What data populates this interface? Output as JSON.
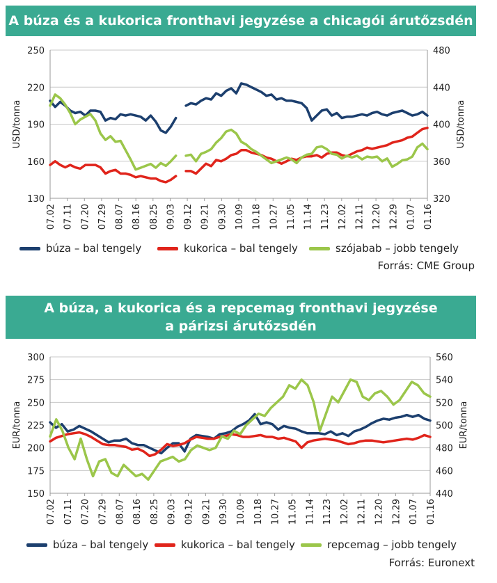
{
  "chart_data": [
    {
      "type": "line",
      "title": "A búza és a kukorica fronthavi jegyzése a chicagói árutőzsdén",
      "ylabel": "USD/tonna",
      "ylabel_right": "USD/tonna",
      "ylim": [
        130,
        250
      ],
      "yticks": [
        130,
        160,
        190,
        220,
        250
      ],
      "ylim_right": [
        320,
        480
      ],
      "yticks_right": [
        320,
        360,
        400,
        440,
        480
      ],
      "x_ticks": [
        "07.02",
        "07.11",
        "07.20",
        "07.29",
        "08.07",
        "08.16",
        "08.25",
        "09.03",
        "09.12",
        "09.21",
        "09.30",
        "10.09",
        "10.18",
        "10.27",
        "11.05",
        "11.14",
        "11.23",
        "12.02",
        "12.11",
        "12.20",
        "12.29",
        "01.07",
        "01.16"
      ],
      "grid": "horizontal",
      "legend_position": "bottom",
      "series": [
        {
          "name": "búza – bal tengely",
          "axis": "left",
          "color": "#1c3f6e",
          "values": [
            209,
            204,
            208,
            205,
            201,
            199,
            200,
            197,
            201,
            201,
            200,
            193,
            195,
            194,
            198,
            197,
            198,
            197,
            196,
            193,
            197,
            192,
            185,
            183,
            188,
            195,
            null,
            205,
            207,
            206,
            209,
            211,
            210,
            215,
            213,
            217,
            219,
            215,
            223,
            222,
            220,
            218,
            216,
            213,
            214,
            210,
            211,
            209,
            209,
            208,
            207,
            203,
            193,
            197,
            201,
            202,
            197,
            199,
            195,
            196,
            196,
            197,
            198,
            197,
            199,
            200,
            198,
            197,
            199,
            200,
            201,
            199,
            197,
            198,
            200,
            197
          ]
        },
        {
          "name": "kukorica – bal tengely",
          "axis": "left",
          "color": "#e0241b",
          "values": [
            157,
            160,
            157,
            155,
            157,
            155,
            154,
            157,
            157,
            157,
            155,
            150,
            152,
            153,
            150,
            150,
            149,
            147,
            148,
            147,
            146,
            146,
            144,
            143,
            145,
            148,
            null,
            152,
            152,
            150,
            154,
            158,
            156,
            161,
            160,
            162,
            165,
            166,
            169,
            169,
            167,
            166,
            165,
            163,
            162,
            160,
            158,
            160,
            162,
            161,
            163,
            164,
            164,
            165,
            163,
            166,
            167,
            167,
            165,
            164,
            166,
            168,
            169,
            171,
            170,
            171,
            172,
            173,
            175,
            176,
            177,
            179,
            180,
            183,
            186,
            187
          ]
        },
        {
          "name": "szójabab – jobb tengely",
          "axis": "right",
          "color": "#9bc64a",
          "values": [
            420,
            432,
            428,
            421,
            412,
            400,
            405,
            408,
            411,
            404,
            390,
            383,
            387,
            381,
            382,
            372,
            362,
            351,
            353,
            355,
            357,
            353,
            358,
            355,
            360,
            366,
            null,
            366,
            367,
            360,
            368,
            370,
            373,
            380,
            385,
            392,
            394,
            390,
            381,
            378,
            373,
            370,
            366,
            362,
            358,
            360,
            362,
            364,
            362,
            358,
            364,
            367,
            368,
            375,
            376,
            373,
            368,
            367,
            363,
            366,
            364,
            366,
            362,
            365,
            364,
            365,
            360,
            363,
            354,
            357,
            361,
            362,
            365,
            375,
            379,
            373
          ]
        }
      ]
    },
    {
      "type": "line",
      "title": "A búza, a kukorica és a repcemag fronthavi jegyzése a párizsi árutőzsdén",
      "ylabel": "EUR/tonna",
      "ylabel_right": "EUR/tonna",
      "ylim": [
        150,
        300
      ],
      "yticks": [
        150,
        175,
        200,
        225,
        250,
        275,
        300
      ],
      "ylim_right": [
        440,
        560
      ],
      "yticks_right": [
        440,
        460,
        480,
        500,
        520,
        540,
        560
      ],
      "x_ticks": [
        "07.02",
        "07.11",
        "07.20",
        "07.29",
        "08.07",
        "08.16",
        "08.25",
        "09.03",
        "09.12",
        "09.21",
        "09.30",
        "10.09",
        "10.18",
        "10.27",
        "11.05",
        "11.14",
        "11.23",
        "12.02",
        "12.11",
        "12.20",
        "12.29",
        "01.07",
        "01.16"
      ],
      "grid": "horizontal",
      "legend_position": "bottom",
      "series": [
        {
          "name": "búza – bal tengely",
          "axis": "left",
          "color": "#1c3f6e",
          "values": [
            228,
            222,
            226,
            218,
            220,
            224,
            221,
            218,
            214,
            210,
            206,
            208,
            208,
            210,
            205,
            203,
            203,
            200,
            197,
            194,
            200,
            205,
            205,
            196,
            210,
            214,
            213,
            212,
            210,
            215,
            216,
            218,
            223,
            226,
            230,
            237,
            226,
            228,
            226,
            220,
            224,
            222,
            221,
            218,
            216,
            216,
            216,
            215,
            218,
            214,
            216,
            213,
            218,
            220,
            223,
            227,
            230,
            232,
            231,
            233,
            234,
            236,
            234,
            236,
            232,
            230
          ]
        },
        {
          "name": "kukorica – bal tengely",
          "axis": "left",
          "color": "#e0241b",
          "values": [
            207,
            211,
            213,
            215,
            216,
            217,
            215,
            212,
            208,
            204,
            203,
            203,
            202,
            201,
            198,
            199,
            196,
            191,
            193,
            198,
            204,
            202,
            203,
            205,
            209,
            212,
            211,
            210,
            210,
            212,
            213,
            215,
            214,
            212,
            212,
            213,
            214,
            212,
            212,
            210,
            211,
            209,
            207,
            200,
            206,
            208,
            209,
            210,
            209,
            208,
            206,
            204,
            205,
            207,
            208,
            208,
            207,
            206,
            207,
            208,
            209,
            210,
            209,
            211,
            214,
            212
          ]
        },
        {
          "name": "repcemag – jobb tengely",
          "axis": "right",
          "color": "#9bc64a",
          "values": [
            490,
            505,
            495,
            480,
            470,
            488,
            470,
            455,
            468,
            470,
            458,
            455,
            465,
            460,
            455,
            457,
            452,
            460,
            468,
            470,
            472,
            468,
            470,
            478,
            482,
            480,
            478,
            480,
            490,
            488,
            495,
            492,
            500,
            505,
            510,
            508,
            515,
            520,
            525,
            535,
            532,
            540,
            535,
            520,
            495,
            510,
            525,
            520,
            530,
            540,
            538,
            525,
            522,
            528,
            530,
            525,
            518,
            522,
            530,
            538,
            535,
            528,
            525
          ]
        }
      ]
    }
  ],
  "legend1": {
    "items": [
      "búza – bal tengely",
      "kukorica – bal tengely",
      "szójabab – jobb tengely"
    ]
  },
  "legend2": {
    "items": [
      "búza – bal tengely",
      "kukorica – bal tengely",
      "repcemag – jobb tengely"
    ]
  },
  "source1": "Forrás: CME Group",
  "source2": "Forrás: Euronext",
  "title1": "A búza és a kukorica fronthavi jegyzése a chicagói árutőzsdén",
  "title2_line1": "A búza, a kukorica és a repcemag fronthavi jegyzése",
  "title2_line2": "a párizsi árutőzsdén"
}
